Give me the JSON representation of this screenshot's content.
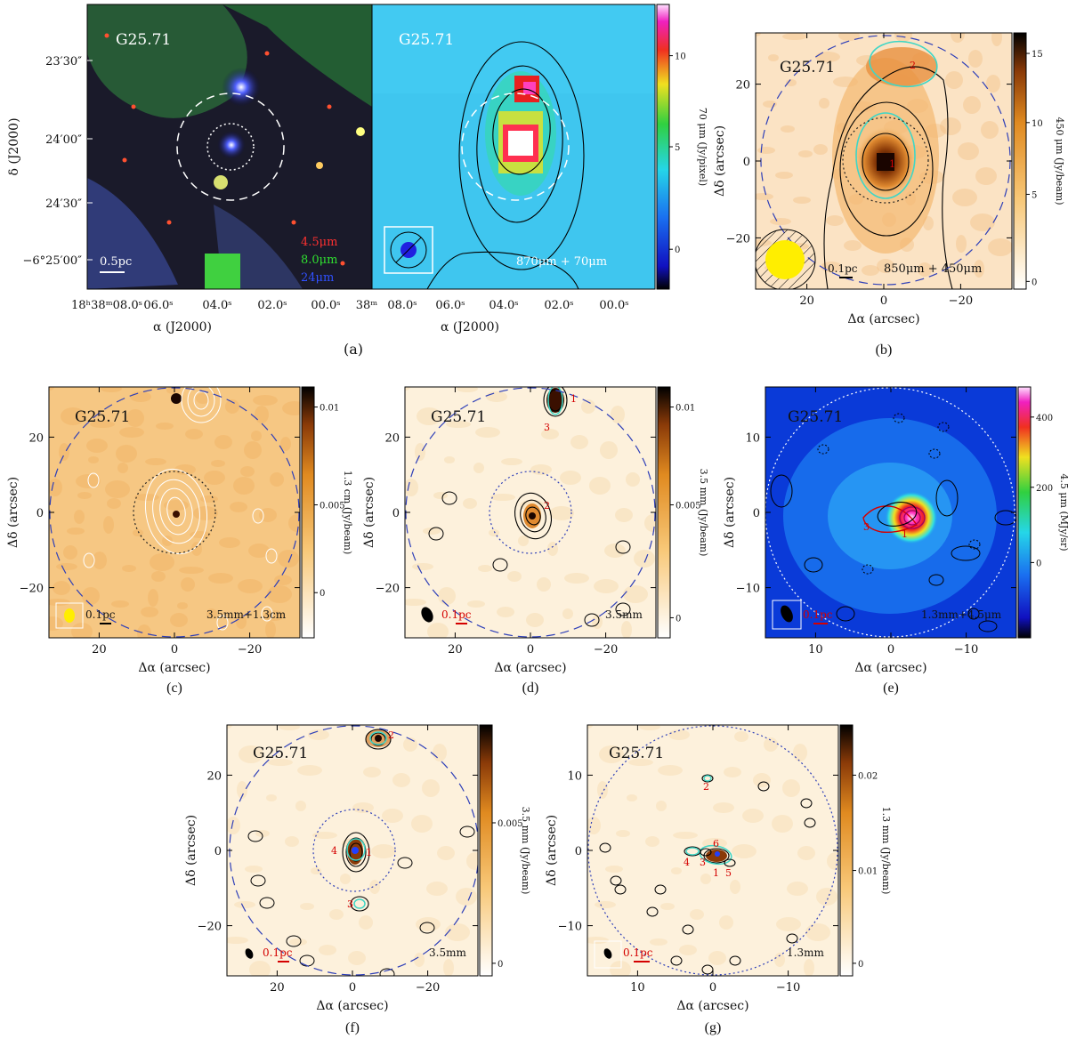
{
  "figure": {
    "source": "G25.71",
    "colors": {
      "orange_bg": "#f6c783",
      "pale_bg": "#fdf1dc",
      "blue_bg": "#1f8ff0",
      "cyan_bg": "#3fc6ef",
      "contour_cyan": "#3fd6c6",
      "label_red": "#d40000",
      "circle_blue": "#2e3fb8",
      "beam_yellow": "#ffee00"
    },
    "panels": {
      "a": {
        "caption": "(a)",
        "title_left": "G25.71",
        "title_right": "G25.71",
        "legend": [
          "4.5μm",
          "8.0μm",
          "24μm"
        ],
        "legend_colors": [
          "#ff3030",
          "#30e030",
          "#3050ff"
        ],
        "scalebar": "0.5pc",
        "bottom_label": "870μm + 70μm",
        "ylabel": "δ (J2000)",
        "xlabel": "α (J2000)",
        "yticks": [
          "23′30″",
          "24′00″",
          "24′30″",
          "−6°25′00″"
        ],
        "xticks_left": [
          "18ʰ38ᵐ08.0ˢ",
          "06.0ˢ",
          "04.0ˢ",
          "02.0ˢ",
          "00.0ˢ",
          "38ᵐ"
        ],
        "xticks_right": [
          "08.0ˢ",
          "06.0ˢ",
          "04.0ˢ",
          "02.0ˢ",
          "00.0ˢ"
        ],
        "cbar_label": "70 μm (Jy/pixel)",
        "cbar_ticks": [
          "10",
          "5",
          "0"
        ]
      },
      "b": {
        "caption": "(b)",
        "title": "G25.71",
        "xlabel": "Δα (arcsec)",
        "ylabel": "Δδ (arcsec)",
        "xticks": [
          "20",
          "0",
          "−20"
        ],
        "yticks": [
          "20",
          "0",
          "−20"
        ],
        "cbar_label": "450 μm (Jy/beam)",
        "cbar_ticks": [
          "15",
          "10",
          "5",
          "0"
        ],
        "scalebar": "0.1pc",
        "bottom_label": "850μm + 450μm",
        "sources": [
          "1",
          "2"
        ]
      },
      "c": {
        "caption": "(c)",
        "title": "G25.71",
        "xlabel": "Δα (arcsec)",
        "ylabel": "Δδ (arcsec)",
        "xticks": [
          "20",
          "0",
          "−20"
        ],
        "yticks": [
          "20",
          "0",
          "−20"
        ],
        "cbar_label": "1.3 cm (Jy/beam)",
        "cbar_ticks": [
          "0.01",
          "0.005",
          "0"
        ],
        "scalebar": "0.1pc",
        "bottom_label": "3.5mm+1.3cm"
      },
      "d": {
        "caption": "(d)",
        "title": "G25.71",
        "xlabel": "Δα (arcsec)",
        "ylabel": "Δδ (arcsec)",
        "xticks": [
          "20",
          "0",
          "−20"
        ],
        "yticks": [
          "20",
          "0",
          "−20"
        ],
        "cbar_label": "3.5 mm (Jy/beam)",
        "cbar_ticks": [
          "0.01",
          "0.005",
          "0"
        ],
        "scalebar": "0.1pc",
        "bottom_label": "3.5mm",
        "sources": [
          "1",
          "2",
          "3"
        ]
      },
      "e": {
        "caption": "(e)",
        "title": "G25.71",
        "xlabel": "Δα (arcsec)",
        "ylabel": "Δδ (arcsec)",
        "xticks": [
          "10",
          "0",
          "−10"
        ],
        "yticks": [
          "10",
          "0",
          "−10"
        ],
        "cbar_label": "4.5 μm (MJy/sr)",
        "cbar_ticks": [
          "400",
          "200",
          "0"
        ],
        "scalebar": "0.1pc",
        "bottom_label": "1.3mm+4.5μm",
        "sources": [
          "1",
          "3"
        ]
      },
      "f": {
        "caption": "(f)",
        "title": "G25.71",
        "xlabel": "Δα (arcsec)",
        "ylabel": "Δδ (arcsec)",
        "xticks": [
          "20",
          "0",
          "−20"
        ],
        "yticks": [
          "20",
          "0",
          "−20"
        ],
        "cbar_label": "3.5 mm (Jy/beam)",
        "cbar_ticks": [
          "0.005",
          "0"
        ],
        "scalebar": "0.1pc",
        "bottom_label": "3.5mm",
        "sources": [
          "1",
          "2",
          "3",
          "4"
        ]
      },
      "g": {
        "caption": "(g)",
        "title": "G25.71",
        "xlabel": "Δα (arcsec)",
        "ylabel": "Δδ (arcsec)",
        "xticks": [
          "10",
          "0",
          "−10"
        ],
        "yticks": [
          "10",
          "0",
          "−10"
        ],
        "cbar_label": "1.3 mm (Jy/beam)",
        "cbar_ticks": [
          "0.02",
          "0.01",
          "0"
        ],
        "scalebar": "0.1pc",
        "bottom_label": "1.3mm",
        "sources": [
          "1",
          "2",
          "3",
          "4",
          "5",
          "6"
        ]
      }
    }
  }
}
